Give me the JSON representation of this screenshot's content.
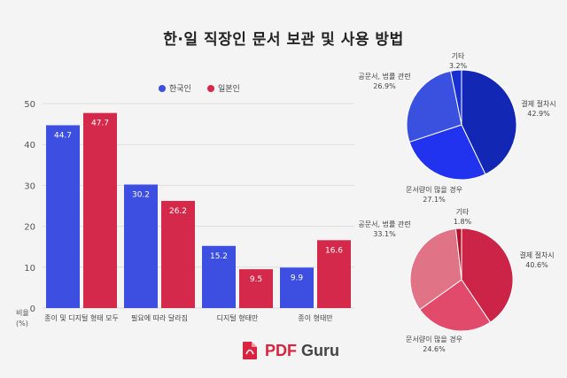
{
  "title": "한·일 직장인 문서 보관 및 사용 방법",
  "colors": {
    "korea": "#3d4fe0",
    "japan": "#d5294b",
    "axis_text": "#555555",
    "grid": "#dddddd"
  },
  "chart_data": [
    {
      "type": "bar",
      "categories": [
        "종이 및 디지털 형태 모두",
        "필요에 따라 달라짐",
        "디지털 형태만",
        "종이 형태만"
      ],
      "series": [
        {
          "name": "한국인",
          "color": "#3d4fe0",
          "values": [
            44.7,
            30.2,
            15.2,
            9.9
          ]
        },
        {
          "name": "일본인",
          "color": "#d5294b",
          "values": [
            47.7,
            26.2,
            9.5,
            16.6
          ]
        }
      ],
      "ylim": [
        0,
        50
      ],
      "yticks": [
        0,
        10,
        20,
        30,
        40,
        50
      ],
      "ylabel": "비율\n(%)",
      "legend_position": "top"
    },
    {
      "type": "pie",
      "slices": [
        {
          "label": "결제 절차시",
          "value": 42.9,
          "value_text": "42.9%",
          "color": "#1228b5"
        },
        {
          "label": "문서량이 많을 경우",
          "value": 27.1,
          "value_text": "27.1%",
          "color": "#2233f0"
        },
        {
          "label": "공문서, 법률 관련",
          "value": 26.9,
          "value_text": "26.9%",
          "color": "#3a50de"
        },
        {
          "label": "기타",
          "value": 3.2,
          "value_text": "3.2%",
          "color": "#1a2fcf"
        }
      ]
    },
    {
      "type": "pie",
      "slices": [
        {
          "label": "결제 절차시",
          "value": 40.6,
          "value_text": "40.6%",
          "color": "#cc2446"
        },
        {
          "label": "문서량이 많을 경우",
          "value": 24.6,
          "value_text": "24.6%",
          "color": "#e24a6b"
        },
        {
          "label": "공문서, 법률 관련",
          "value": 33.1,
          "value_text": "33.1%",
          "color": "#e07385"
        },
        {
          "label": "기타",
          "value": 1.8,
          "value_text": "1.8%",
          "color": "#b0102a"
        }
      ]
    }
  ],
  "brand": {
    "part1": "PDF",
    "part2": " Guru",
    "icon": "pdf-guru-logo-icon",
    "color": "#d8243f"
  }
}
